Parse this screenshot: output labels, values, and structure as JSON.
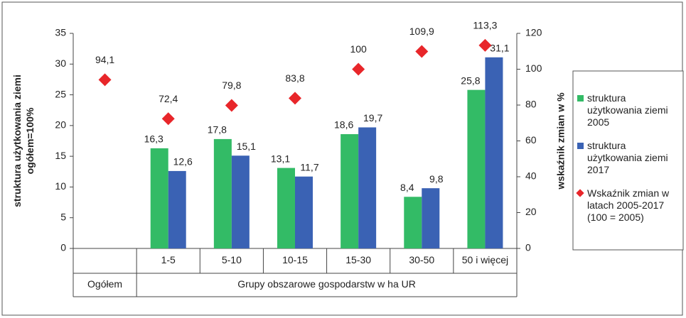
{
  "chart_data": {
    "type": "bar",
    "categories": [
      "Ogółem",
      "1-5",
      "5-10",
      "10-15",
      "15-30",
      "30-50",
      "50 i więcej"
    ],
    "category_groups": [
      {
        "label": "Grupy obszarowe gospodarstw w ha UR",
        "from": 1,
        "to": 6
      }
    ],
    "ylabel": "struktura użytkowania ziemi ogółem=100%",
    "y2label": "wskaźnik zmian w %",
    "ylim": [
      0,
      35
    ],
    "yticks": [
      0,
      5,
      10,
      15,
      20,
      25,
      30,
      35
    ],
    "y2lim": [
      0,
      120
    ],
    "y2ticks": [
      0,
      20,
      40,
      60,
      80,
      100,
      120
    ],
    "series": [
      {
        "name": "struktura użytkowania ziemi 2005",
        "type": "bar",
        "color": "#33bb66",
        "values": [
          null,
          16.3,
          17.8,
          13.1,
          18.6,
          8.4,
          25.8
        ],
        "value_labels": [
          null,
          "16,3",
          "17,8",
          "13,1",
          "18,6",
          "8,4",
          "25,8"
        ]
      },
      {
        "name": "struktura użytkowania ziemi 2017",
        "type": "bar",
        "color": "#3a62b4",
        "values": [
          null,
          12.6,
          15.1,
          11.7,
          19.7,
          9.8,
          31.1
        ],
        "value_labels": [
          null,
          "12,6",
          "15,1",
          "11,7",
          "19,7",
          "9,8",
          "31,1"
        ]
      },
      {
        "name": "Wskaźnik zmian w latach 2005-2017 (100 = 2005)",
        "type": "scatter",
        "axis": "y2",
        "color": "#e8262a",
        "values": [
          94.1,
          72.4,
          79.8,
          83.8,
          100,
          109.9,
          113.3
        ],
        "value_labels": [
          "94,1",
          "72,4",
          "79,8",
          "83,8",
          "100",
          "109,9",
          "113,3"
        ]
      }
    ]
  }
}
